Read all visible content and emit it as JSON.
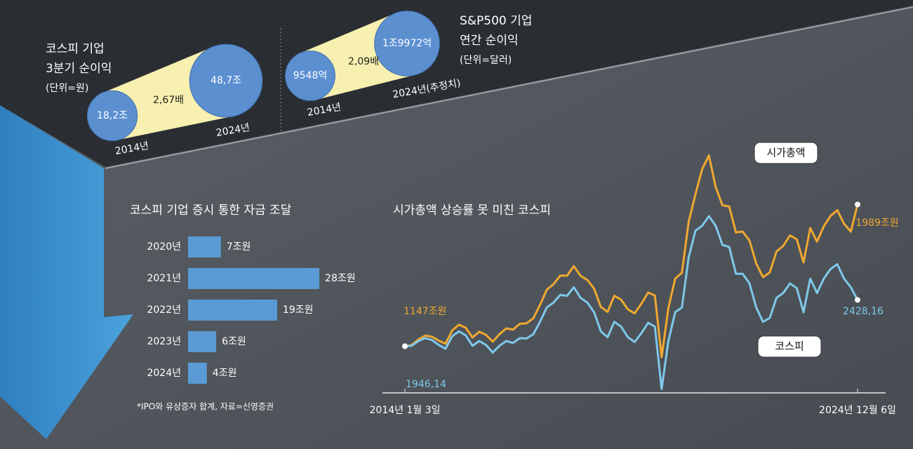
{
  "chart_data": [
    {
      "type": "bubble",
      "title_lines": [
        "코스피 기업",
        "3분기 순이익"
      ],
      "unit": "(단위=원)",
      "categories": [
        "2014년",
        "2024년"
      ],
      "values": [
        18.2,
        48.7
      ],
      "value_labels": [
        "18,2조",
        "48,7조"
      ],
      "ratio_label": "2,67배",
      "color": "#5b8fd0",
      "band_color": "#f7f0b0"
    },
    {
      "type": "bubble",
      "title_lines": [
        "S&P500 기업",
        "연간 순이익"
      ],
      "unit": "(단위=달러)",
      "categories": [
        "2014년",
        "2024년(추정치)"
      ],
      "values": [
        9548,
        19972
      ],
      "value_labels": [
        "9548억",
        "1조9972억"
      ],
      "ratio_label": "2,09배",
      "color": "#5b8fd0",
      "band_color": "#f7f0b0"
    },
    {
      "type": "bar",
      "title": "코스피 기업 증시 통한 자금 조달",
      "categories": [
        "2020년",
        "2021년",
        "2022년",
        "2023년",
        "2024년"
      ],
      "values": [
        7,
        28,
        19,
        6,
        4
      ],
      "value_labels": [
        "7조원",
        "28조원",
        "19조원",
        "6조원",
        "4조원"
      ],
      "color": "#5b9bd5",
      "note": "*IPO와 유상증자 합계, 자료=신영증권"
    },
    {
      "type": "line",
      "title": "시가총액 상승률 못 미친 코스피",
      "categories": [
        "2014년 1월 3일",
        null,
        null,
        null,
        null,
        null,
        null,
        null,
        null,
        null,
        null,
        null,
        null,
        null,
        null,
        null,
        null,
        null,
        null,
        null,
        null,
        null,
        null,
        null,
        null,
        null,
        null,
        null,
        null,
        null,
        null,
        null,
        null,
        null,
        null,
        null,
        null,
        null,
        null,
        null,
        null,
        null,
        null,
        null,
        null,
        null,
        null,
        null,
        null,
        null,
        null,
        null,
        null,
        null,
        null,
        null,
        null,
        null,
        null,
        null,
        null,
        null,
        null,
        null,
        null,
        null,
        null,
        "2024년 12월 6일"
      ],
      "ylim": [
        870,
        2370
      ],
      "y2lim": [
        1460,
        4090
      ],
      "series": [
        {
          "name": "시가총액",
          "color": "#f0a830",
          "values": [
            1147,
            1154,
            1188,
            1210,
            1204,
            1180,
            1162,
            1241,
            1275,
            1257,
            1199,
            1233,
            1215,
            1174,
            1219,
            1253,
            1246,
            1280,
            1283,
            1313,
            1392,
            1483,
            1516,
            1567,
            1566,
            1623,
            1565,
            1541,
            1489,
            1380,
            1351,
            1447,
            1423,
            1366,
            1342,
            1399,
            1466,
            1448,
            1082,
            1373,
            1549,
            1583,
            1885,
            2049,
            2200,
            2280,
            2093,
            1984,
            1977,
            1823,
            1828,
            1775,
            1638,
            1557,
            1585,
            1710,
            1743,
            1805,
            1782,
            1644,
            1849,
            1768,
            1859,
            1921,
            1955,
            1874,
            1828,
            1989
          ],
          "value_labels": [
            "1147조원",
            null,
            null,
            null,
            null,
            null,
            null,
            null,
            null,
            null,
            null,
            null,
            null,
            null,
            null,
            null,
            null,
            null,
            null,
            null,
            null,
            null,
            null,
            null,
            null,
            null,
            null,
            null,
            null,
            null,
            null,
            null,
            null,
            null,
            null,
            null,
            null,
            null,
            null,
            null,
            null,
            null,
            null,
            null,
            null,
            null,
            null,
            null,
            null,
            null,
            null,
            null,
            null,
            null,
            null,
            null,
            null,
            null,
            null,
            null,
            null,
            null,
            null,
            null,
            null,
            null,
            null,
            "1989조원"
          ]
        },
        {
          "name": "코스피",
          "color": "#7fc8ea",
          "axis": "y2",
          "values": [
            1946.14,
            1950,
            2000,
            2030,
            2010,
            1960,
            1920,
            2050,
            2100,
            2060,
            1950,
            2000,
            1960,
            1880,
            1950,
            2000,
            1980,
            2030,
            2026,
            2070,
            2200,
            2350,
            2400,
            2480,
            2470,
            2560,
            2450,
            2400,
            2300,
            2100,
            2040,
            2200,
            2150,
            2040,
            1990,
            2080,
            2190,
            2150,
            1500,
            2000,
            2300,
            2350,
            2870,
            3150,
            3200,
            3300,
            3200,
            3000,
            2980,
            2700,
            2700,
            2600,
            2350,
            2200,
            2240,
            2450,
            2500,
            2600,
            2550,
            2300,
            2650,
            2500,
            2650,
            2750,
            2800,
            2650,
            2560,
            2428.16
          ],
          "value_labels": [
            "1946,14",
            null,
            null,
            null,
            null,
            null,
            null,
            null,
            null,
            null,
            null,
            null,
            null,
            null,
            null,
            null,
            null,
            null,
            null,
            null,
            null,
            null,
            null,
            null,
            null,
            null,
            null,
            null,
            null,
            null,
            null,
            null,
            null,
            null,
            null,
            null,
            null,
            null,
            null,
            null,
            null,
            null,
            null,
            null,
            null,
            null,
            null,
            null,
            null,
            null,
            null,
            null,
            null,
            null,
            null,
            null,
            null,
            null,
            null,
            null,
            null,
            null,
            null,
            null,
            null,
            null,
            null,
            "2428,16"
          ]
        }
      ]
    }
  ]
}
